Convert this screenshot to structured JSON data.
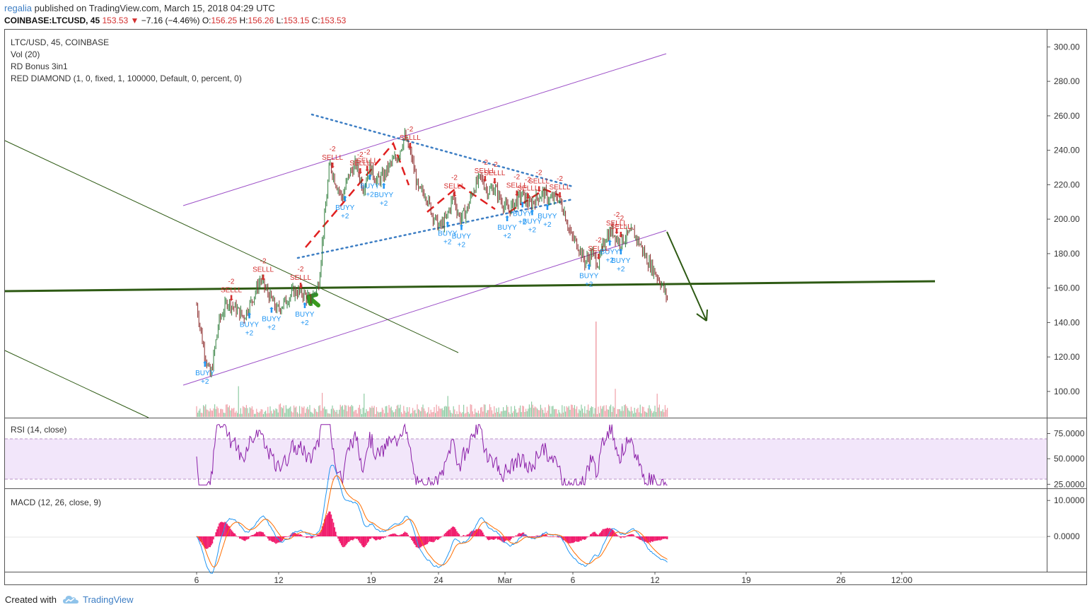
{
  "header": {
    "user": "regalia",
    "published": "published on TradingView.com, March 15, 2018 04:29 UTC",
    "symbol": "COINBASE:LTCUSD, 45",
    "last": "153.53",
    "change": "−7.16 (−4.46%)",
    "o_label": "O:",
    "o": "156.25",
    "h_label": "H:",
    "h": "156.26",
    "l_label": "L:",
    "l": "153.15",
    "c_label": "C:",
    "c": "153.53"
  },
  "legend": {
    "main": "LTC/USD, 45, COINBASE",
    "vol": "Vol (20)",
    "rd": "RD Bonus 3in1",
    "red_diamond": "RED DIAMOND (1, 0, fixed, 1, 100000, Default, 0, percent, 0)",
    "rsi": "RSI (14, close)",
    "macd": "MACD (12, 26, close, 9)"
  },
  "footer": {
    "created": "Created with",
    "brand": "TradingView"
  },
  "colors": {
    "up": "#53b987",
    "down": "#eb4d5c",
    "rsi": "#8b1fa8",
    "macd": "#2196f3",
    "signal": "#ff6d00",
    "hist": "#f0196b",
    "signal_buy": "#2196f3",
    "signal_sell": "#d32f2f",
    "trend": "#2e5a14",
    "channel": "#9c4fc7"
  },
  "chart_data": [
    {
      "type": "line",
      "title": "LTC/USD, 45, COINBASE",
      "price_ticks": [
        "300.00",
        "280.00",
        "260.00",
        "240.00",
        "220.00",
        "200.00",
        "180.00",
        "160.00",
        "140.00",
        "120.00",
        "100.00"
      ],
      "ylim": [
        85,
        310
      ],
      "x_ticks": [
        "6",
        "12",
        "19",
        "24",
        "Mar",
        "6",
        "12",
        "19",
        "26",
        "12:00"
      ],
      "series": [
        {
          "values": [
            [
              5,
              150
            ],
            [
              5.5,
              125
            ],
            [
              6,
              108
            ],
            [
              6.6,
              140
            ],
            [
              7.2,
              152
            ],
            [
              7.8,
              148
            ],
            [
              8.4,
              143
            ],
            [
              9,
              153
            ],
            [
              9.6,
              165
            ],
            [
              10.2,
              156
            ],
            [
              10.8,
              147
            ],
            [
              11.4,
              152
            ],
            [
              12,
              158
            ],
            [
              12.6,
              157
            ],
            [
              13.2,
              153
            ],
            [
              13.8,
              162
            ],
            [
              14.2,
              198
            ],
            [
              14.6,
              232
            ],
            [
              15,
              222
            ],
            [
              15.5,
              212
            ],
            [
              16,
              226
            ],
            [
              16.5,
              232
            ],
            [
              17,
              218
            ],
            [
              17.5,
              230
            ],
            [
              18,
              222
            ],
            [
              18.5,
              225
            ],
            [
              19,
              232
            ],
            [
              19.5,
              236
            ],
            [
              20,
              248
            ],
            [
              20.5,
              236
            ],
            [
              21,
              216
            ],
            [
              21.5,
              215
            ],
            [
              22,
              203
            ],
            [
              22.5,
              195
            ],
            [
              23,
              200
            ],
            [
              23.5,
              213
            ],
            [
              24,
              200
            ],
            [
              24.5,
              205
            ],
            [
              25,
              218
            ],
            [
              25.5,
              224
            ],
            [
              26,
              216
            ],
            [
              26.5,
              218
            ],
            [
              27,
              210
            ],
            [
              27.5,
              205
            ],
            [
              28,
              210
            ],
            [
              28.5,
              214
            ],
            [
              29,
              208
            ],
            [
              29.5,
              212
            ],
            [
              30,
              215
            ],
            [
              30.5,
              211
            ],
            [
              31,
              213
            ],
            [
              31.5,
              205
            ],
            [
              32,
              190
            ],
            [
              32.5,
              185
            ],
            [
              33,
              175
            ],
            [
              33.5,
              180
            ],
            [
              34,
              174
            ],
            [
              34.5,
              190
            ],
            [
              35,
              193
            ],
            [
              35.5,
              186
            ],
            [
              36,
              190
            ],
            [
              36.5,
              192
            ],
            [
              37,
              185
            ],
            [
              37.5,
              176
            ],
            [
              38,
              170
            ],
            [
              38.5,
              163
            ],
            [
              39,
              153
            ]
          ]
        }
      ],
      "signals": [
        {
          "type": "BUYY",
          "value": "+2",
          "day": 5.6
        },
        {
          "type": "SELLL",
          "value": "-2",
          "day": 7.5
        },
        {
          "type": "BUYY",
          "value": "+2",
          "day": 8.8
        },
        {
          "type": "SELLL",
          "value": "-2",
          "day": 9.8
        },
        {
          "type": "BUYY",
          "value": "+2",
          "day": 10.4
        },
        {
          "type": "SELLL",
          "value": "-2",
          "day": 12.5
        },
        {
          "type": "BUYY",
          "value": "+2",
          "day": 12.8
        },
        {
          "type": "SELLL",
          "value": "-2",
          "day": 14.8
        },
        {
          "type": "BUYY",
          "value": "+2",
          "day": 15.7
        },
        {
          "type": "SELLL",
          "value": "-2",
          "day": 16.8
        },
        {
          "type": "BUYY",
          "value": "+2",
          "day": 17.5
        },
        {
          "type": "SELLL",
          "value": "-2",
          "day": 17.3
        },
        {
          "type": "BUYY",
          "value": "+2",
          "day": 18.5
        },
        {
          "type": "SELLL",
          "value": "-2",
          "day": 20.4
        },
        {
          "type": "BUYY",
          "value": "+2",
          "day": 23.1
        },
        {
          "type": "SELLL",
          "value": "-2",
          "day": 23.6
        },
        {
          "type": "BUYY",
          "value": "+2",
          "day": 24.1
        },
        {
          "type": "SELLL",
          "value": "-2",
          "day": 25.8
        },
        {
          "type": "SELLL",
          "value": "-2",
          "day": 26.5
        },
        {
          "type": "BUYY",
          "value": "+2",
          "day": 27.4
        },
        {
          "type": "SELLL",
          "value": "-2",
          "day": 28.1
        },
        {
          "type": "BUYY",
          "value": "+2",
          "day": 28.5
        },
        {
          "type": "SELLL",
          "value": "-2",
          "day": 28.9
        },
        {
          "type": "BUYY",
          "value": "+2",
          "day": 29.2
        },
        {
          "type": "SELLL",
          "value": "-2",
          "day": 29.7
        },
        {
          "type": "BUYY",
          "value": "+2",
          "day": 30.3
        },
        {
          "type": "SELLL",
          "value": "-2",
          "day": 31.2
        },
        {
          "type": "BUYY",
          "value": "+2",
          "day": 33.3
        },
        {
          "type": "SELLL",
          "value": "-2",
          "day": 34.0
        },
        {
          "type": "BUYY",
          "value": "+2",
          "day": 34.8
        },
        {
          "type": "SELLL",
          "value": "-2",
          "day": 35.3
        },
        {
          "type": "BUYY",
          "value": "+2",
          "day": 35.6
        },
        {
          "type": "SELLL",
          "value": "-2",
          "day": 35.6
        }
      ]
    },
    {
      "type": "line",
      "title": "RSI (14, close)",
      "y_ticks": [
        "75.0000",
        "50.0000",
        "25.0000"
      ],
      "ylim": [
        20,
        85
      ],
      "band": [
        30,
        70
      ]
    },
    {
      "type": "line",
      "title": "MACD (12, 26, close, 9)",
      "y_ticks": [
        "10.0000",
        "0.0000"
      ],
      "ylim": [
        -8,
        12
      ]
    }
  ]
}
